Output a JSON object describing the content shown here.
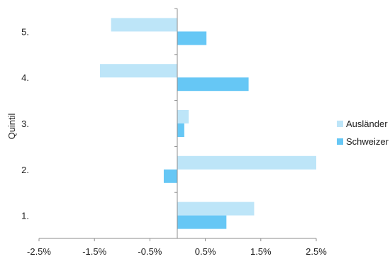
{
  "chart_data": {
    "type": "bar",
    "orientation": "horizontal",
    "categories": [
      "1.",
      "2.",
      "3.",
      "4.",
      "5."
    ],
    "series": [
      {
        "name": "Ausländer",
        "values": [
          1.38,
          2.5,
          0.2,
          -1.4,
          -1.2
        ],
        "color": "#BDE5F8"
      },
      {
        "name": "Schweizer",
        "values": [
          0.88,
          -0.25,
          0.12,
          1.28,
          0.52
        ],
        "color": "#66C7F5"
      }
    ],
    "x_ticks": [
      "-2.5%",
      "-1.5%",
      "-0.5%",
      "0.5%",
      "1.5%",
      "2.5%"
    ],
    "xlim": [
      -2.5,
      2.5
    ],
    "xlabel": "",
    "ylabel": "Quintil",
    "legend_position": "right",
    "grid": false
  }
}
